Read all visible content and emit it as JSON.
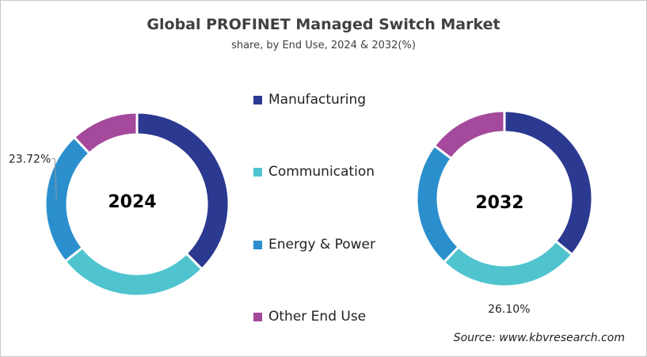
{
  "title": "Global PROFINET Managed Switch Market",
  "subtitle": "share, by End Use, 2024 & 2032(%)",
  "source": "Source: www.kbvresearch.com",
  "chart_data": [
    {
      "type": "donut",
      "center_label": "2024",
      "categories": [
        "Manufacturing",
        "Communication",
        "Energy & Power",
        "Other End Use"
      ],
      "values": [
        37.5,
        26.8,
        23.72,
        11.98
      ],
      "data_labels": {
        "Energy & Power": "23.72%"
      },
      "colors": [
        "#2B3990",
        "#4FC4CF",
        "#2B8FCE",
        "#A4499B"
      ]
    },
    {
      "type": "donut",
      "center_label": "2032",
      "categories": [
        "Manufacturing",
        "Communication",
        "Energy & Power",
        "Other End Use"
      ],
      "values": [
        36.0,
        26.1,
        23.2,
        14.7
      ],
      "data_labels": {
        "Communication": "26.10%"
      },
      "colors": [
        "#2B3990",
        "#4FC4CF",
        "#2B8FCE",
        "#A4499B"
      ]
    }
  ],
  "legend": [
    {
      "label": "Manufacturing",
      "color": "#2B3990"
    },
    {
      "label": "Communication",
      "color": "#4FC4CF"
    },
    {
      "label": "Energy & Power",
      "color": "#2B8FCE"
    },
    {
      "label": "Other End Use",
      "color": "#A4499B"
    }
  ]
}
